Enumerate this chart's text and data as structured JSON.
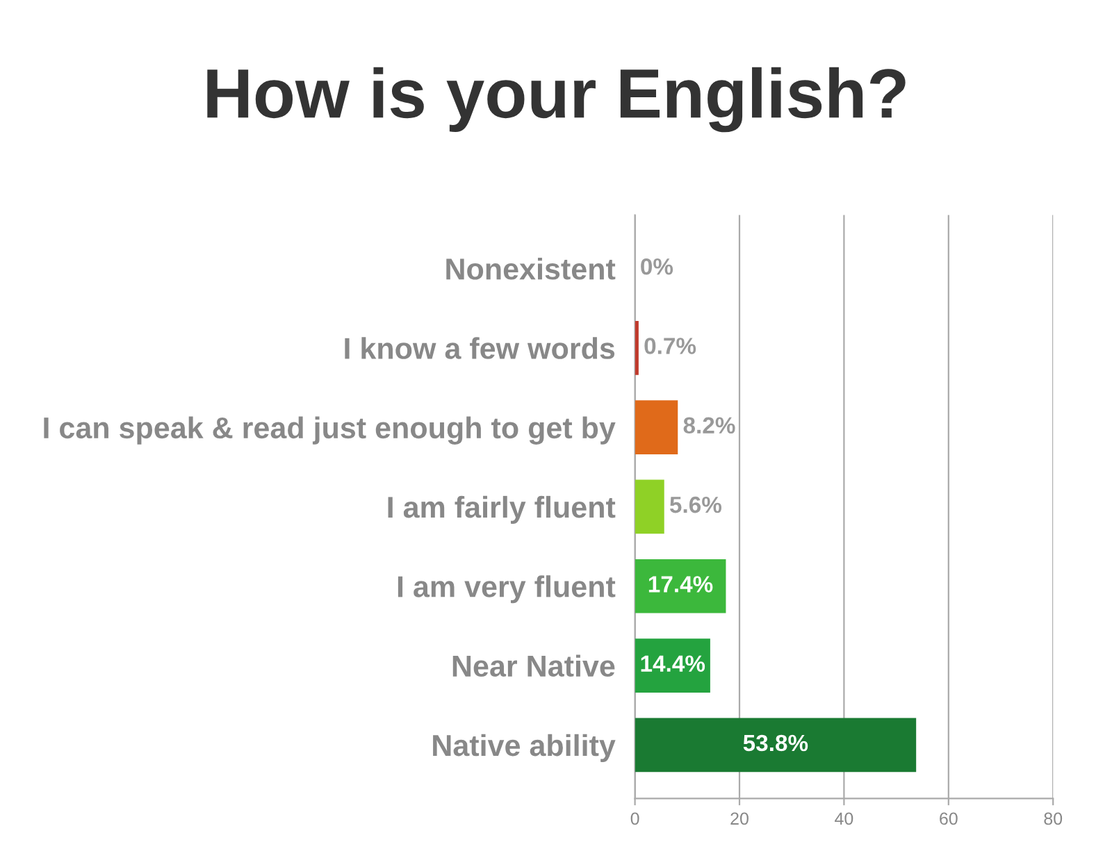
{
  "chart_data": {
    "type": "bar",
    "orientation": "horizontal",
    "title": "How is your English?",
    "categories": [
      "Nonexistent",
      "I know a few words",
      "I can speak & read just enough to get by",
      "I am fairly fluent",
      "I am very fluent",
      "Near Native",
      "Native ability"
    ],
    "values": [
      0,
      0.7,
      8.2,
      5.6,
      17.4,
      14.4,
      53.8
    ],
    "value_labels": [
      "0%",
      "0.7%",
      "8.2%",
      "5.6%",
      "17.4%",
      "14.4%",
      "53.8%"
    ],
    "colors": [
      "#999999",
      "#c0392b",
      "#e06a1a",
      "#8fd126",
      "#3cb83c",
      "#24a33f",
      "#1a7a32"
    ],
    "xlim": [
      0,
      80
    ],
    "xticks": [
      0,
      20,
      40,
      60,
      80
    ],
    "grid": "x"
  }
}
